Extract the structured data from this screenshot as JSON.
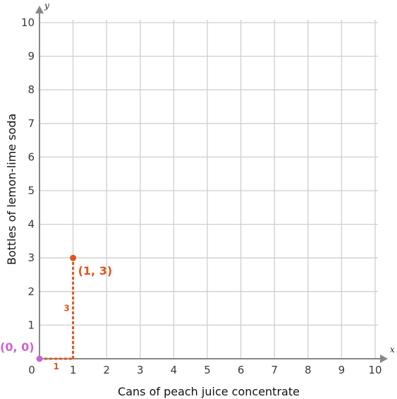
{
  "chart_data": {
    "type": "scatter",
    "xlabel": "Cans of peach juice concentrate",
    "ylabel": "Bottles of lemon-lime soda",
    "x_axis_letter": "x",
    "y_axis_letter": "y",
    "xlim": [
      0,
      10
    ],
    "ylim": [
      0,
      10
    ],
    "x_ticks": [
      "0",
      "1",
      "2",
      "3",
      "4",
      "5",
      "6",
      "7",
      "8",
      "9",
      "10"
    ],
    "y_ticks": [
      "1",
      "2",
      "3",
      "4",
      "5",
      "6",
      "7",
      "8",
      "9",
      "10"
    ],
    "grid": true,
    "points": [
      {
        "x": 0,
        "y": 0,
        "label": "(0, 0)",
        "color": "#cc66cc"
      },
      {
        "x": 1,
        "y": 3,
        "label": "(1, 3)",
        "color": "#e0561f"
      }
    ],
    "steps": [
      {
        "direction": "horizontal",
        "from": [
          0,
          0
        ],
        "to": [
          1,
          0
        ],
        "label": "1",
        "color": "#e0561f"
      },
      {
        "direction": "vertical",
        "from": [
          1,
          0
        ],
        "to": [
          1,
          3
        ],
        "label": "3",
        "color": "#e0561f"
      }
    ]
  }
}
